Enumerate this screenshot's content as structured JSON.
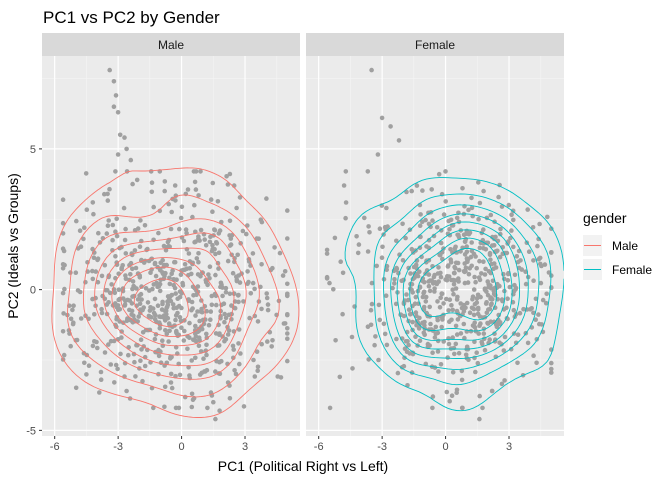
{
  "chart_data": {
    "type": "scatter",
    "title": "PC1 vs PC2 by Gender",
    "xlabel": "PC1 (Political Right vs Left)",
    "ylabel": "PC2 (Ideals vs Groups)",
    "xlim": [
      -6.6,
      5.6
    ],
    "ylim": [
      -5.2,
      8.3
    ],
    "x_ticks": [
      -6,
      -3,
      0,
      3
    ],
    "y_ticks": [
      -5,
      0,
      5
    ],
    "grid": true,
    "point_color": "#a0a0a0",
    "legend": {
      "title": "gender",
      "placement": "right",
      "entries": [
        {
          "label": "Male",
          "color": "#f8766d"
        },
        {
          "label": "Female",
          "color": "#00bfc4"
        }
      ]
    },
    "facets": [
      {
        "label": "Male",
        "density_color": "#f8766d",
        "points": [
          [
            -3.4,
            7.8
          ],
          [
            -3.2,
            7.4
          ],
          [
            -3.1,
            6.9
          ],
          [
            -3.2,
            6.5
          ],
          [
            -3.0,
            6.3
          ],
          [
            -2.9,
            5.5
          ],
          [
            -2.7,
            5.4
          ],
          [
            -3.0,
            4.8
          ],
          [
            -2.6,
            5.0
          ],
          [
            -2.4,
            4.6
          ],
          [
            -1.4,
            3.8
          ],
          [
            -0.3,
            3.7
          ],
          [
            0.2,
            3.4
          ],
          [
            -4.2,
            3.1
          ],
          [
            -4.6,
            2.2
          ],
          [
            -5.0,
            0.6
          ],
          [
            -5.6,
            0.9
          ],
          [
            -5.4,
            -0.9
          ],
          [
            -5.0,
            -1.8
          ],
          [
            -4.6,
            -2.6
          ],
          [
            -3.8,
            -3.2
          ],
          [
            -2.6,
            -3.6
          ],
          [
            -1.4,
            -3.5
          ],
          [
            -0.5,
            -3.3
          ],
          [
            0.5,
            -3.7
          ],
          [
            1.5,
            -4.0
          ],
          [
            1.6,
            -4.6
          ],
          [
            1.8,
            -4.3
          ],
          [
            2.2,
            -3.3
          ],
          [
            3.4,
            -2.5
          ],
          [
            4.3,
            -1.8
          ],
          [
            4.9,
            -1.2
          ],
          [
            4.8,
            0.5
          ],
          [
            4.4,
            1.5
          ],
          [
            3.8,
            2.4
          ],
          [
            2.6,
            2.9
          ],
          [
            1.4,
            3.2
          ],
          [
            0.6,
            3.0
          ],
          [
            -0.8,
            3.5
          ],
          [
            -2.1,
            3.9
          ],
          [
            -3.5,
            3.4
          ],
          [
            1.0,
            0.6
          ],
          [
            2.0,
            -0.5
          ],
          [
            3.2,
            1.0
          ],
          [
            -1.0,
            -2.2
          ],
          [
            -2.0,
            -2.8
          ],
          [
            4.6,
            -0.4
          ]
        ],
        "random_points": {
          "count": 680,
          "center": [
            -0.5,
            -0.1
          ],
          "spread": [
            2.4,
            1.8
          ],
          "seed": 7
        }
      },
      {
        "label": "Female",
        "density_color": "#00bfc4",
        "points": [
          [
            -3.5,
            7.8
          ],
          [
            -3.0,
            6.1
          ],
          [
            -2.6,
            5.8
          ],
          [
            -2.2,
            5.3
          ],
          [
            -3.2,
            4.8
          ],
          [
            -0.3,
            4.1
          ],
          [
            -4.8,
            3.7
          ],
          [
            -5.6,
            0.4
          ],
          [
            -5.2,
            -1.8
          ],
          [
            -5.0,
            -3.1
          ],
          [
            -4.4,
            -2.8
          ],
          [
            -1.8,
            -3.4
          ],
          [
            -0.6,
            -3.8
          ],
          [
            0.8,
            -4.2
          ],
          [
            1.6,
            -4.6
          ],
          [
            2.2,
            -3.6
          ],
          [
            3.4,
            -2.6
          ],
          [
            4.6,
            -1.5
          ],
          [
            5.0,
            0.5
          ],
          [
            4.4,
            1.8
          ],
          [
            3.2,
            2.8
          ],
          [
            1.8,
            3.5
          ],
          [
            0.8,
            3.6
          ],
          [
            -1.6,
            3.5
          ],
          [
            -2.8,
            2.9
          ],
          [
            -4.1,
            1.6
          ],
          [
            -4.3,
            -0.6
          ],
          [
            2.9,
            1.3
          ],
          [
            4.0,
            -0.7
          ]
        ],
        "random_points": {
          "count": 620,
          "center": [
            0.4,
            0.0
          ],
          "spread": [
            2.2,
            1.6
          ],
          "seed": 13
        }
      }
    ]
  }
}
